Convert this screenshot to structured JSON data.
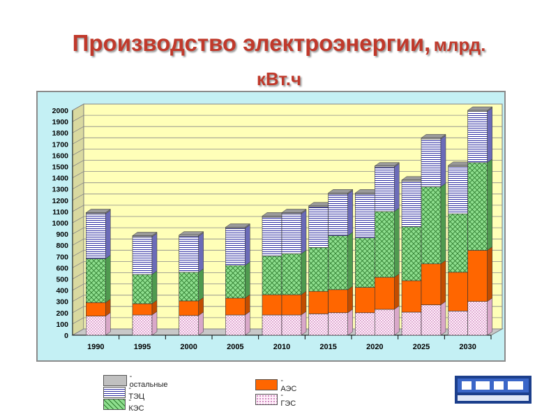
{
  "slide": {
    "title": "Производство электроэнергии,",
    "unit": "млрд.",
    "unit2": "кВт.ч"
  },
  "chart_data": {
    "type": "bar",
    "stacked": true,
    "title": "Производство электроэнергии, млрд. кВт.ч",
    "categories": [
      "1990",
      "1995",
      "2000",
      "2005",
      "2010a",
      "2010b",
      "2015a",
      "2015b",
      "2020a",
      "2020b",
      "2025a",
      "2025b",
      "2030a",
      "2030b"
    ],
    "x_labels": [
      "1990",
      "1995",
      "2000",
      "2005",
      "2010",
      "2015",
      "2020",
      "2025",
      "2030"
    ],
    "x_label_groups": [
      [
        0
      ],
      [
        1
      ],
      [
        2
      ],
      [
        3
      ],
      [
        4,
        5
      ],
      [
        6,
        7
      ],
      [
        8,
        9
      ],
      [
        10,
        11
      ],
      [
        12,
        13
      ]
    ],
    "ylim": [
      0,
      2000
    ],
    "yticks": [
      0,
      100,
      200,
      300,
      400,
      500,
      600,
      700,
      800,
      900,
      1000,
      1100,
      1200,
      1300,
      1400,
      1500,
      1600,
      1700,
      1800,
      1900,
      2000
    ],
    "series": [
      {
        "name": "- ГЭС",
        "key": "ges",
        "values": [
          170,
          180,
          175,
          180,
          180,
          180,
          190,
          200,
          200,
          230,
          205,
          270,
          215,
          300
        ]
      },
      {
        "name": "- АЭС",
        "key": "aes",
        "values": [
          120,
          100,
          130,
          150,
          180,
          180,
          200,
          205,
          225,
          285,
          280,
          365,
          345,
          455
        ]
      },
      {
        "name": "- КЭС",
        "key": "kes",
        "values": [
          390,
          260,
          255,
          290,
          345,
          365,
          390,
          480,
          440,
          585,
          480,
          685,
          520,
          780
        ]
      },
      {
        "name": "- ТЭЦ",
        "key": "tec",
        "values": [
          400,
          335,
          320,
          330,
          345,
          355,
          360,
          370,
          390,
          395,
          405,
          425,
          420,
          455
        ]
      },
      {
        "name": "- остальные",
        "key": "other",
        "values": [
          10,
          10,
          10,
          10,
          10,
          10,
          10,
          10,
          10,
          10,
          10,
          10,
          10,
          10
        ]
      }
    ],
    "colors": {
      "ges": "#ffd6f0",
      "aes": "#ff6600",
      "kes": "#8ede8e",
      "tec": "#ffffff",
      "other": "#c0c0c0",
      "floor": "#c8c8c8",
      "wall": "#ffffb8",
      "grid": "#888888"
    },
    "legend": {
      "left": [
        {
          "key": "other",
          "label": "- остальные"
        },
        {
          "key": "tec",
          "label": "- ТЭЦ"
        },
        {
          "key": "kes",
          "label": "- КЭС"
        }
      ],
      "right": [
        {
          "key": "aes",
          "label": "- АЭС"
        },
        {
          "key": "ges",
          "label": "- ГЭС"
        }
      ]
    }
  }
}
